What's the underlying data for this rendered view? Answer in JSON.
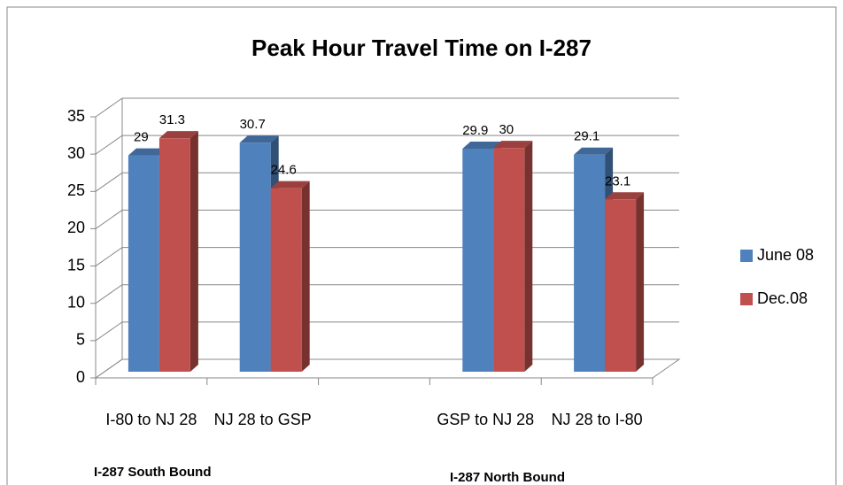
{
  "chart_data": {
    "type": "bar3d",
    "title": "Peak Hour Travel Time on I-287",
    "categories": [
      "I-80 to NJ 28",
      "NJ 28 to GSP",
      null,
      "GSP to NJ 28",
      "NJ 28 to I-80"
    ],
    "series": [
      {
        "name": "June 08",
        "color": "#4f81bd",
        "values": [
          29,
          30.7,
          null,
          29.9,
          29.1
        ]
      },
      {
        "name": "Dec.08",
        "color": "#c0504d",
        "values": [
          31.3,
          24.6,
          null,
          30,
          23.1
        ]
      }
    ],
    "annotations": [
      "I-287 South Bound",
      "I-287 North Bound"
    ],
    "ylim": [
      0,
      35
    ],
    "yticks": [
      0,
      5,
      10,
      15,
      20,
      25,
      30,
      35
    ],
    "grid": true,
    "legend": "right"
  }
}
